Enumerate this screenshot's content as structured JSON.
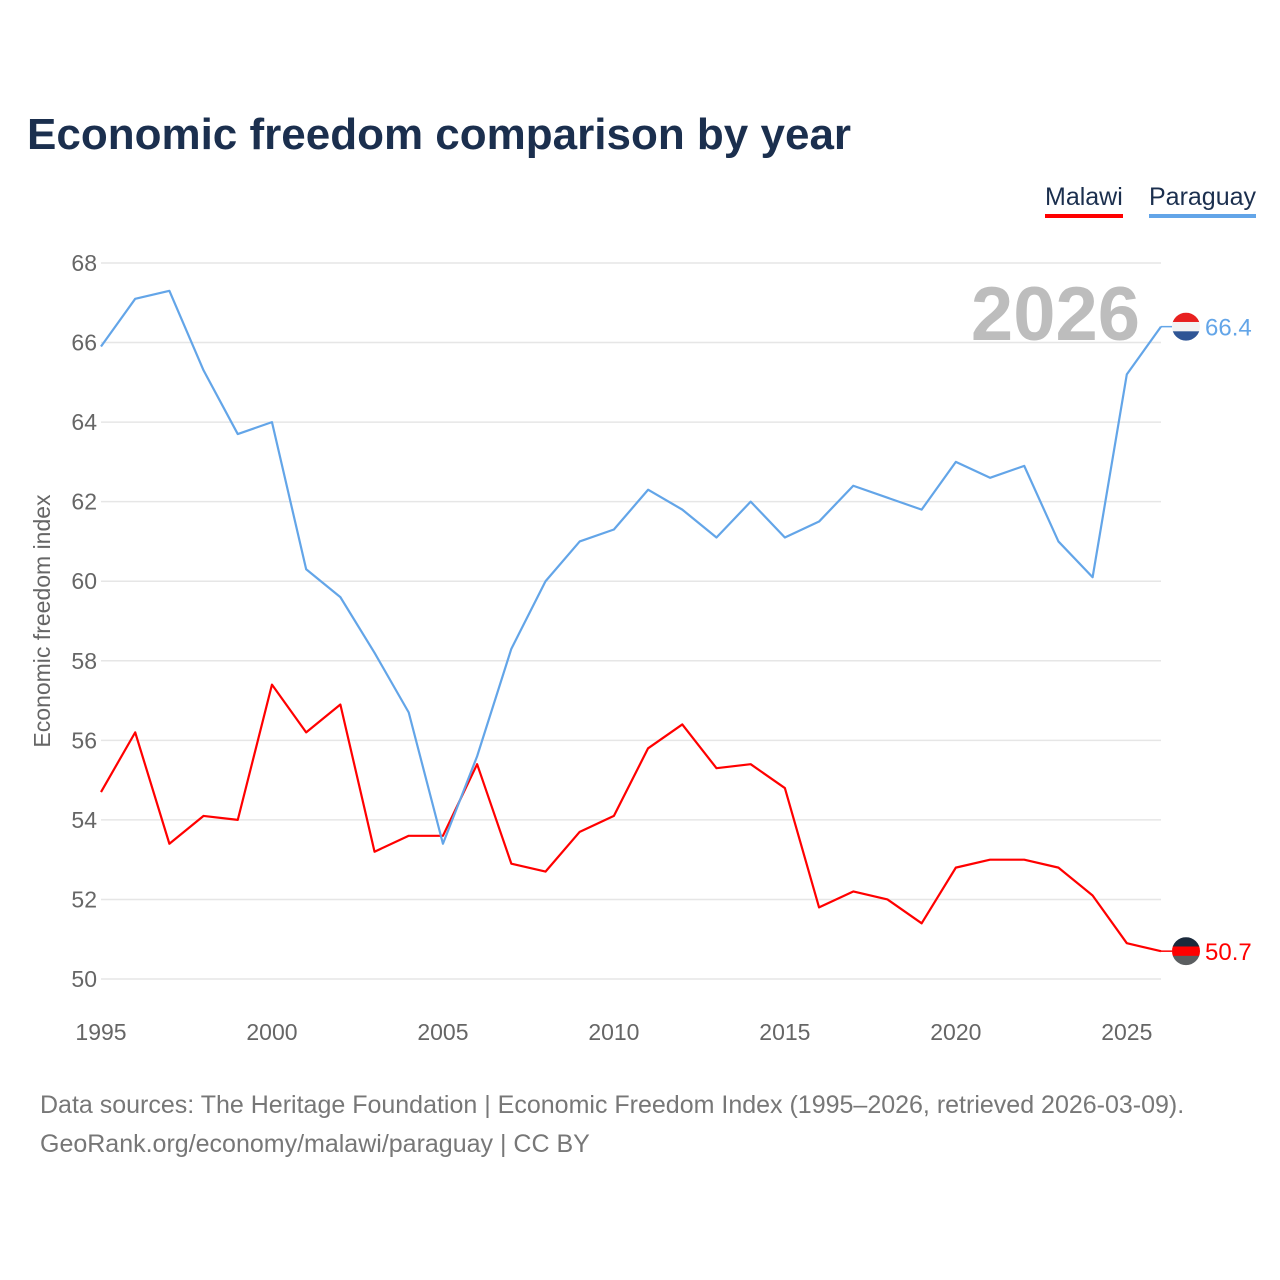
{
  "title": "Economic freedom comparison by year",
  "legend": {
    "malawi": "Malawi",
    "paraguay": "Paraguay"
  },
  "year_watermark": "2026",
  "source_line1": "Data sources: The Heritage Foundation | Economic Freedom Index (1995–2026, retrieved 2026-03-09).",
  "source_line2": "GeoRank.org/economy/malawi/paraguay | CC BY",
  "chart_data": {
    "type": "line",
    "title": "Economic freedom comparison by year",
    "xlabel": "",
    "ylabel": "Economic freedom index",
    "xlim": [
      1995,
      2026
    ],
    "ylim": [
      50,
      68
    ],
    "x_ticks": [
      1995,
      2000,
      2005,
      2010,
      2015,
      2020,
      2025
    ],
    "y_ticks": [
      50,
      52,
      54,
      56,
      58,
      60,
      62,
      64,
      66,
      68
    ],
    "grid": true,
    "legend_placement": "top-right",
    "x": [
      1995,
      1996,
      1997,
      1998,
      1999,
      2000,
      2001,
      2002,
      2003,
      2004,
      2005,
      2006,
      2007,
      2008,
      2009,
      2010,
      2011,
      2012,
      2013,
      2014,
      2015,
      2016,
      2017,
      2018,
      2019,
      2020,
      2021,
      2022,
      2023,
      2024,
      2025,
      2026
    ],
    "series": [
      {
        "name": "Malawi",
        "color": "#ff0000",
        "end_label": "50.7",
        "values": [
          54.7,
          56.2,
          53.4,
          54.1,
          54.0,
          57.4,
          56.2,
          56.9,
          53.2,
          53.6,
          53.6,
          55.4,
          52.9,
          52.7,
          53.7,
          54.1,
          55.8,
          56.4,
          55.3,
          55.4,
          54.8,
          51.8,
          52.2,
          52.0,
          51.4,
          52.8,
          53.0,
          53.0,
          52.8,
          52.1,
          50.9,
          50.7
        ]
      },
      {
        "name": "Paraguay",
        "color": "#63a5e8",
        "end_label": "66.4",
        "values": [
          65.9,
          67.1,
          67.3,
          65.3,
          63.7,
          64.0,
          60.3,
          59.6,
          58.2,
          56.7,
          53.4,
          55.6,
          58.3,
          60.0,
          61.0,
          61.3,
          62.3,
          61.8,
          61.1,
          62.0,
          61.1,
          61.5,
          62.4,
          62.1,
          61.8,
          63.0,
          62.6,
          62.9,
          61.0,
          60.1,
          65.2,
          66.4
        ]
      }
    ]
  }
}
